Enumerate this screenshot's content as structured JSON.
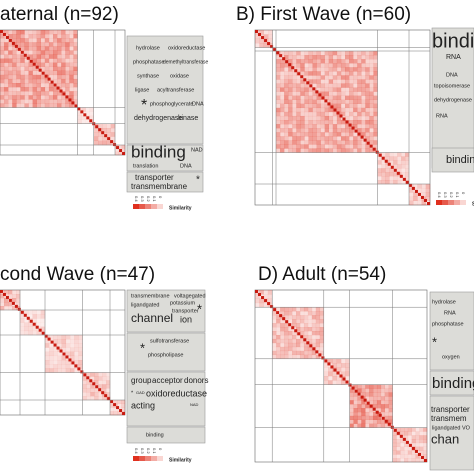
{
  "panels": [
    {
      "title": "aternal (n=92)",
      "words": [
        "hydrolase",
        "oxidoreductase",
        "phosphatase",
        "demethyltransferase",
        "synthase",
        "oxidase",
        "ligase",
        "acyltransferase",
        "*",
        "phosphoglycerate",
        "DNA",
        "dehydrogenase",
        "kinase",
        "binding",
        "NAD",
        "translation",
        "DNA",
        "transporter",
        "transmembrane",
        "*"
      ],
      "legend": {
        "label": "Similarity",
        "ticks": [
          "0.4",
          "0.3",
          "0.2",
          "0.1",
          "0"
        ]
      }
    },
    {
      "title": "B) First Wave (n=60)",
      "words": [
        "binding",
        "RNA",
        "DNA",
        "topoisomerase",
        "dehydrogenase",
        "RNA",
        "binding"
      ],
      "legend": {
        "label": "Similarity",
        "ticks": [
          "0.4",
          "0.3",
          "0.2",
          "0.1",
          "0"
        ]
      }
    },
    {
      "title": "cond Wave (n=47)",
      "words": [
        "transmembrane",
        "voltagegated",
        "ligandgated",
        "potassium",
        "transporter",
        "channel",
        "ion",
        "*",
        "sulfotransferase",
        "phospholipase",
        "*",
        "group",
        "acceptor",
        "donors",
        "oxidoreductase",
        "acting",
        "binding",
        "*",
        "GAD",
        "NAD"
      ],
      "legend": {
        "label": "Similarity",
        "ticks": [
          "0.4",
          "0.3",
          "0.2",
          "0.1",
          "0"
        ]
      }
    },
    {
      "title": "D) Adult (n=54)",
      "words": [
        "hydrolase",
        "RNA",
        "phosphatase",
        "*",
        "oxygen",
        "binding",
        "transporter",
        "transmem",
        "ligandgated VO",
        "chan"
      ]
    }
  ]
}
